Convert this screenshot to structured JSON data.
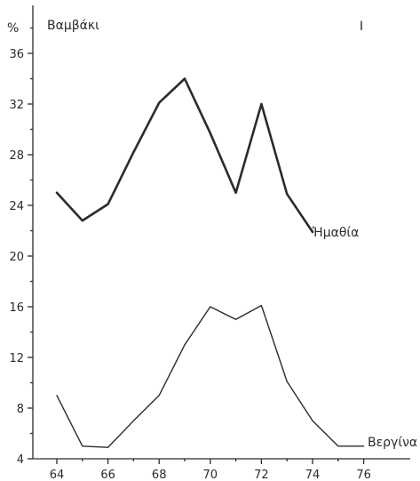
{
  "chart_data": {
    "type": "line",
    "title": "Βαμβάκι",
    "panel_label": "I",
    "ylabel": "%",
    "xlabel": "",
    "xlim": [
      63.5,
      76.8
    ],
    "ylim": [
      4,
      38
    ],
    "x_ticks": [
      64,
      66,
      68,
      70,
      72,
      74,
      76
    ],
    "y_ticks": [
      4,
      8,
      12,
      16,
      20,
      24,
      28,
      32,
      36
    ],
    "grid": false,
    "series": [
      {
        "name": "Ἡμαθία",
        "color": "#2b2b2b",
        "x": [
          64,
          65,
          66,
          67,
          68,
          69,
          70,
          71,
          72,
          73,
          74
        ],
        "y": [
          25,
          22.8,
          24.1,
          28.2,
          32.1,
          34,
          29.7,
          25,
          32,
          24.9,
          21.9
        ]
      },
      {
        "name": "Βεργίνα",
        "color": "#2b2b2b",
        "x": [
          64,
          65,
          66,
          67,
          68,
          69,
          70,
          71,
          72,
          73,
          74,
          75,
          76
        ],
        "y": [
          9,
          5,
          4.9,
          7,
          9,
          13,
          16,
          15,
          16.1,
          10.1,
          7,
          5,
          5
        ]
      }
    ]
  }
}
